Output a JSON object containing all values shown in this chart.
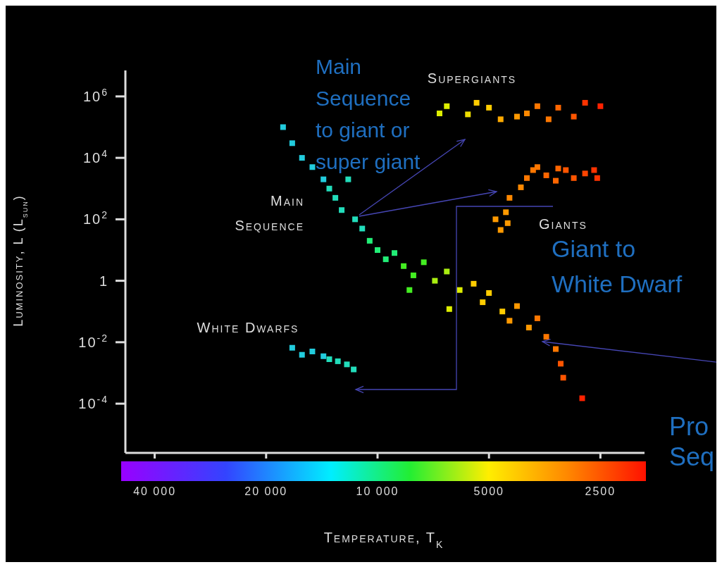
{
  "chart_data": {
    "type": "scatter",
    "xlabel": "Temperature, T$_{K}$",
    "ylabel": "Luminosity, L (L$_{sun}$)",
    "log": "xy",
    "marker": "square",
    "xlim": [
      48000,
      1900
    ],
    "ylim": [
      2.5e-06,
      7000000
    ],
    "xticks": [
      {
        "value": 40000,
        "label": "40 000"
      },
      {
        "value": 20000,
        "label": "20 000"
      },
      {
        "value": 10000,
        "label": "10 000"
      },
      5000,
      2500
    ],
    "yticks": [
      {
        "value": 0.0001,
        "label": "10$^{-4}$"
      },
      {
        "value": 0.01,
        "label": "10$^{-2}$"
      },
      1,
      {
        "value": 100,
        "label": "10$^{2}$"
      },
      {
        "value": 10000,
        "label": "10$^{4}$"
      },
      {
        "value": 1000000,
        "label": "10$^{6}$"
      }
    ],
    "series": [
      {
        "name": "Main Sequence",
        "x": [
          18000,
          17000,
          16000,
          15000,
          14000,
          13500,
          13000,
          12000,
          12500,
          11500,
          11000,
          10500,
          10000,
          9500,
          9000,
          8500,
          8000,
          8200,
          7500,
          7000,
          6500,
          6400,
          6000,
          5500,
          5200,
          5000,
          4600,
          4400,
          4200,
          3900,
          3700,
          3500,
          3300,
          3200,
          3150,
          2800
        ],
        "values": [
          100000,
          30000,
          10000,
          5000,
          2000,
          1000,
          500,
          2000,
          200,
          100,
          50,
          20,
          10,
          5,
          8,
          3,
          1.5,
          0.5,
          4,
          1,
          2,
          0.12,
          0.5,
          0.8,
          0.2,
          0.4,
          0.1,
          0.05,
          0.15,
          0.03,
          0.06,
          0.015,
          0.006,
          0.002,
          0.0007,
          0.00015
        ],
        "colors": [
          "#22ccdd",
          "#22ccdd",
          "#22ccdd",
          "#22ccdd",
          "#22ccdd",
          "#22ddbb",
          "#22ddbb",
          "#22ddbb",
          "#22ddbb",
          "#22ddbb",
          "#22ddbb",
          "#22ee77",
          "#22ee77",
          "#22ee77",
          "#22ee77",
          "#44ee22",
          "#44ee22",
          "#44ee22",
          "#44ee22",
          "#aaee11",
          "#aaee11",
          "#ddee00",
          "#ddee00",
          "#ffcc00",
          "#ffcc00",
          "#ffcc00",
          "#ffcc00",
          "#ff9900",
          "#ff9900",
          "#ff9900",
          "#ff7700",
          "#ff7700",
          "#ff7700",
          "#ff5500",
          "#ff5500",
          "#ff2200"
        ]
      },
      {
        "name": "Giants",
        "x": [
          4800,
          4650,
          4500,
          4450,
          4400,
          4100,
          3950,
          3800,
          3700,
          3500,
          3300,
          3250,
          3100,
          2950,
          2750,
          2600,
          2550
        ],
        "values": [
          100,
          45,
          170,
          75,
          500,
          1100,
          2200,
          4000,
          5000,
          2700,
          1800,
          4500,
          4000,
          2200,
          3100,
          4000,
          2200
        ],
        "colors": [
          "#ff9900",
          "#ff9900",
          "#ff9900",
          "#ff9900",
          "#ff8800",
          "#ff8800",
          "#ff7700",
          "#ff7700",
          "#ff7700",
          "#ff6600",
          "#ff6600",
          "#ff6600",
          "#ff5500",
          "#ff5500",
          "#ff4400",
          "#ff3300",
          "#ff3300"
        ]
      },
      {
        "name": "Supergiants",
        "x": [
          6800,
          6500,
          5700,
          5400,
          5000,
          4650,
          4200,
          3950,
          3700,
          3450,
          3250,
          2950,
          2750,
          2500
        ],
        "values": [
          280000,
          480000,
          260000,
          620000,
          430000,
          180000,
          220000,
          280000,
          480000,
          180000,
          430000,
          220000,
          620000,
          480000
        ],
        "colors": [
          "#ddee00",
          "#ddee00",
          "#eedd00",
          "#ffcc00",
          "#ffcc00",
          "#ffaa00",
          "#ff9900",
          "#ff8800",
          "#ff7700",
          "#ff7700",
          "#ff6600",
          "#ff5500",
          "#ff3300",
          "#ff2200"
        ]
      },
      {
        "name": "White Dwarfs",
        "x": [
          17000,
          16000,
          15000,
          14000,
          13500,
          12800,
          12100,
          11600
        ],
        "values": [
          0.0066,
          0.0039,
          0.005,
          0.0035,
          0.0028,
          0.0024,
          0.0019,
          0.0013
        ],
        "colors": [
          "#22ccdd",
          "#22ccdd",
          "#22ccdd",
          "#22ccdd",
          "#22ddbb",
          "#22ddbb",
          "#22ddbb",
          "#22ddbb"
        ]
      }
    ],
    "annotations": [
      "Main\nSequence\nto giant or\nsuper giant",
      "Giant to\nWhite Dwarf",
      "Pro\nSeq"
    ]
  }
}
